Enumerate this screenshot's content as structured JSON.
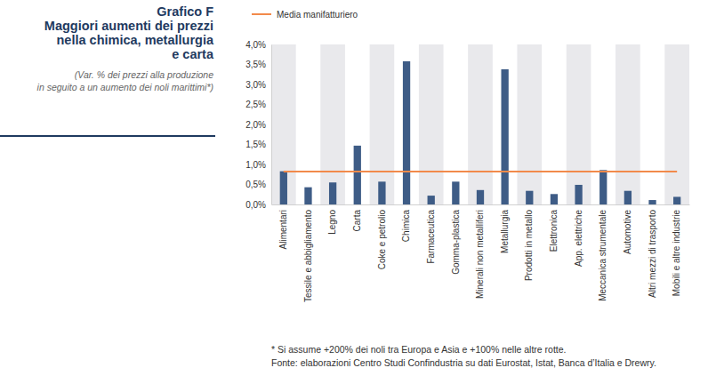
{
  "chart_data": {
    "type": "bar",
    "title": [
      "Grafico F",
      "Maggiori aumenti dei prezzi",
      "nella chimica, metallurgia",
      "e carta"
    ],
    "subtitle": [
      "(Var. % dei prezzi alla produzione",
      "in seguito a un aumento dei noli marittimi*)"
    ],
    "annotations": [
      "* Si assume +200% dei noli tra Europa e Asia e +100% nelle altre rotte.",
      "Fonte: elaborazioni Centro Studi Confindustria su dati Eurostat, Istat,  Banca d’Italia e Drewry."
    ],
    "categories": [
      "Alimentari",
      "Tessile e abbigliamento",
      "Legno",
      "Carta",
      "Coke e petrolio",
      "Chimica",
      "Farmaceutica",
      "Gomma-plastica",
      "Minerali non metalliferi",
      "Metallurgia",
      "Prodotti in metallo",
      "Elettronica",
      "App. elettriche",
      "Meccanica strumentale",
      "Automotive",
      "Altri mezzi di trasporto",
      "Mobili e altre industrie"
    ],
    "series": [
      {
        "type": "bar",
        "color": "#3e5c86",
        "values": [
          0.83,
          0.43,
          0.55,
          1.47,
          0.57,
          3.58,
          0.22,
          0.57,
          0.36,
          3.38,
          0.34,
          0.26,
          0.49,
          0.86,
          0.34,
          0.11,
          0.19
        ]
      },
      {
        "name": "Media manifatturiero",
        "type": "line",
        "color": "#f28a4b",
        "values": [
          0.82,
          0.82,
          0.82,
          0.82,
          0.82,
          0.82,
          0.82,
          0.82,
          0.82,
          0.82,
          0.82,
          0.82,
          0.82,
          0.82,
          0.82,
          0.82,
          0.82
        ]
      }
    ],
    "ylim": [
      0,
      4
    ],
    "yticks": [
      {
        "value": 0,
        "label": "0,0%"
      },
      {
        "value": 0.5,
        "label": "0,5%"
      },
      {
        "value": 1,
        "label": "1,0%"
      },
      {
        "value": 1.5,
        "label": "1,5%"
      },
      {
        "value": 2,
        "label": "2,0%"
      },
      {
        "value": 2.5,
        "label": "2,5%"
      },
      {
        "value": 3,
        "label": "3,0%"
      },
      {
        "value": 3.5,
        "label": "3,5%"
      },
      {
        "value": 4,
        "label": "4,0%"
      }
    ],
    "grid": false,
    "legend": "top"
  }
}
